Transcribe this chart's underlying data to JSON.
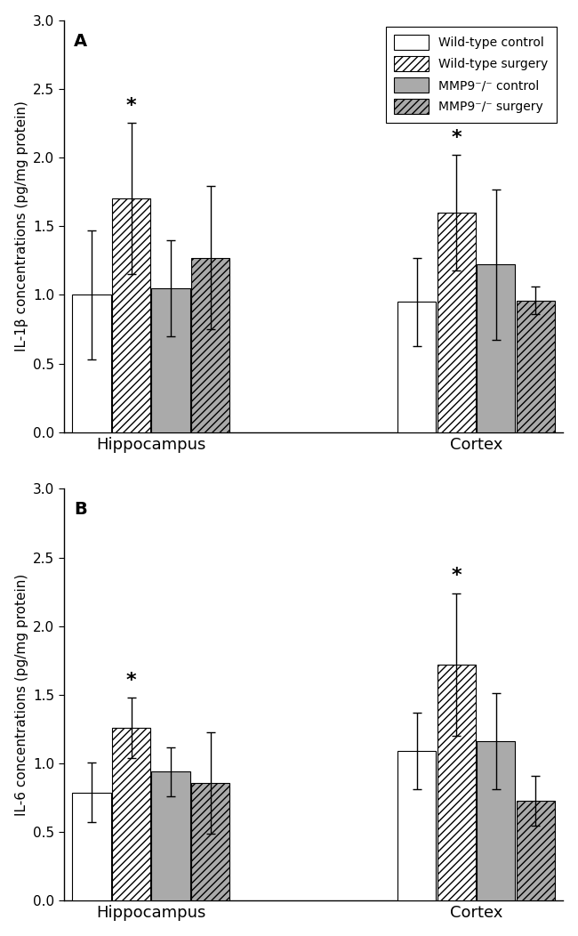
{
  "panel_A": {
    "label": "A",
    "ylabel": "IL-1β concentrations (pg/mg protein)",
    "groups": [
      "Hippocampus",
      "Cortex"
    ],
    "bars": {
      "wt_control": {
        "hippocampus": 1.0,
        "cortex": 0.95
      },
      "wt_surgery": {
        "hippocampus": 1.7,
        "cortex": 1.6
      },
      "mmp9_control": {
        "hippocampus": 1.05,
        "cortex": 1.22
      },
      "mmp9_surgery": {
        "hippocampus": 1.27,
        "cortex": 0.96
      }
    },
    "errors": {
      "wt_control": {
        "hippocampus": 0.47,
        "cortex": 0.32
      },
      "wt_surgery": {
        "hippocampus": 0.55,
        "cortex": 0.42
      },
      "mmp9_control": {
        "hippocampus": 0.35,
        "cortex": 0.55
      },
      "mmp9_surgery": {
        "hippocampus": 0.52,
        "cortex": 0.1
      }
    },
    "star_bars": [
      "wt_surgery_hippocampus",
      "wt_surgery_cortex"
    ],
    "ylim": [
      0,
      3.0
    ],
    "yticks": [
      0.0,
      0.5,
      1.0,
      1.5,
      2.0,
      2.5,
      3.0
    ]
  },
  "panel_B": {
    "label": "B",
    "ylabel": "IL-6 concentrations (pg/mg protein)",
    "groups": [
      "Hippocampus",
      "Cortex"
    ],
    "bars": {
      "wt_control": {
        "hippocampus": 0.79,
        "cortex": 1.09
      },
      "wt_surgery": {
        "hippocampus": 1.26,
        "cortex": 1.72
      },
      "mmp9_control": {
        "hippocampus": 0.94,
        "cortex": 1.16
      },
      "mmp9_surgery": {
        "hippocampus": 0.86,
        "cortex": 0.73
      }
    },
    "errors": {
      "wt_control": {
        "hippocampus": 0.22,
        "cortex": 0.28
      },
      "wt_surgery": {
        "hippocampus": 0.22,
        "cortex": 0.52
      },
      "mmp9_control": {
        "hippocampus": 0.18,
        "cortex": 0.35
      },
      "mmp9_surgery": {
        "hippocampus": 0.37,
        "cortex": 0.18
      }
    },
    "star_bars": [
      "wt_surgery_hippocampus",
      "wt_surgery_cortex"
    ],
    "ylim": [
      0,
      3.0
    ],
    "yticks": [
      0.0,
      0.5,
      1.0,
      1.5,
      2.0,
      2.5,
      3.0
    ]
  },
  "legend": {
    "labels": [
      "Wild-type control",
      "Wild-type surgery",
      "MMP9⁻/⁻ control",
      "MMP9⁻/⁻ surgery"
    ],
    "facecolors": [
      "white",
      "white",
      "#aaaaaa",
      "#aaaaaa"
    ],
    "hatch": [
      "",
      "////",
      "",
      "////"
    ]
  },
  "bar_width": 0.28,
  "group_centers": [
    1.5,
    3.8
  ],
  "edge_color": "#000000",
  "error_color": "#000000",
  "background_color": "#ffffff",
  "fontsize_label": 11,
  "fontsize_tick": 10,
  "fontsize_panel": 14,
  "fontsize_legend": 10,
  "fontsize_star": 16
}
